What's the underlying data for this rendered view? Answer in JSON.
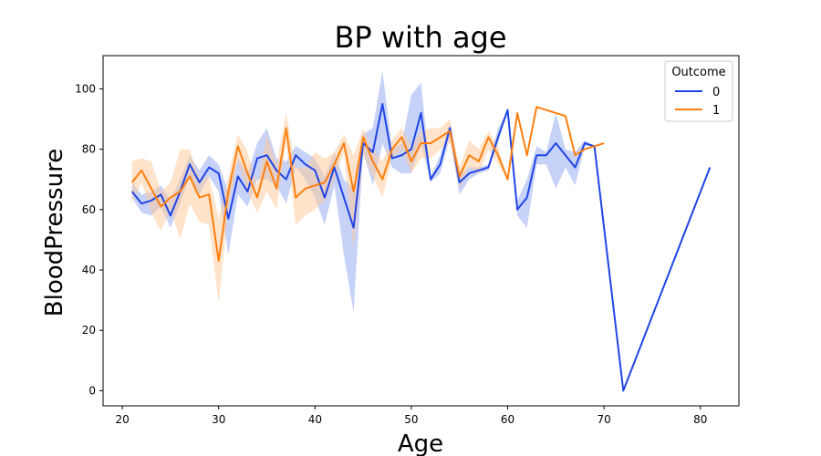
{
  "chart_data": {
    "type": "line",
    "title": "BP with age",
    "xlabel": "Age",
    "ylabel": "BloodPressure",
    "xlim": [
      18,
      84
    ],
    "ylim": [
      -5,
      111
    ],
    "xticks": [
      20,
      30,
      40,
      50,
      60,
      70,
      80
    ],
    "yticks": [
      0,
      20,
      40,
      60,
      80,
      100
    ],
    "grid": false,
    "legend": {
      "title": "Outcome",
      "placement": "top-right"
    },
    "series": [
      {
        "name": "0",
        "color": "#1f45e6",
        "band_color": "#8fa6f2",
        "points": [
          {
            "x": 21,
            "y": 66,
            "lo": 64,
            "hi": 69
          },
          {
            "x": 22,
            "y": 62,
            "lo": 59,
            "hi": 65
          },
          {
            "x": 23,
            "y": 63,
            "lo": 58,
            "hi": 66
          },
          {
            "x": 24,
            "y": 65,
            "lo": 61,
            "hi": 68
          },
          {
            "x": 25,
            "y": 58,
            "lo": 54,
            "hi": 63
          },
          {
            "x": 26,
            "y": 66,
            "lo": 62,
            "hi": 70
          },
          {
            "x": 27,
            "y": 75,
            "lo": 71,
            "hi": 78
          },
          {
            "x": 28,
            "y": 69,
            "lo": 65,
            "hi": 73
          },
          {
            "x": 29,
            "y": 74,
            "lo": 71,
            "hi": 78
          },
          {
            "x": 30,
            "y": 72,
            "lo": 66,
            "hi": 75
          },
          {
            "x": 31,
            "y": 57,
            "lo": 45,
            "hi": 66
          },
          {
            "x": 32,
            "y": 71,
            "lo": 65,
            "hi": 77
          },
          {
            "x": 33,
            "y": 66,
            "lo": 61,
            "hi": 72
          },
          {
            "x": 34,
            "y": 77,
            "lo": 70,
            "hi": 82
          },
          {
            "x": 35,
            "y": 78,
            "lo": 70,
            "hi": 87
          },
          {
            "x": 36,
            "y": 73,
            "lo": 68,
            "hi": 77
          },
          {
            "x": 37,
            "y": 70,
            "lo": 62,
            "hi": 76
          },
          {
            "x": 38,
            "y": 78,
            "lo": 74,
            "hi": 81
          },
          {
            "x": 39,
            "y": 75,
            "lo": 70,
            "hi": 79
          },
          {
            "x": 40,
            "y": 73,
            "lo": 64,
            "hi": 77
          },
          {
            "x": 41,
            "y": 64,
            "lo": 55,
            "hi": 71
          },
          {
            "x": 42,
            "y": 74,
            "lo": 68,
            "hi": 79
          },
          {
            "x": 43,
            "y": 64,
            "lo": 45,
            "hi": 70
          },
          {
            "x": 44,
            "y": 54,
            "lo": 26,
            "hi": 67
          },
          {
            "x": 45,
            "y": 82,
            "lo": 79,
            "hi": 85
          },
          {
            "x": 46,
            "y": 79,
            "lo": 68,
            "hi": 87
          },
          {
            "x": 47,
            "y": 95,
            "lo": 82,
            "hi": 106
          },
          {
            "x": 48,
            "y": 77,
            "lo": 74,
            "hi": 80
          },
          {
            "x": 49,
            "y": 78,
            "lo": 72,
            "hi": 82
          },
          {
            "x": 50,
            "y": 80,
            "lo": 72,
            "hi": 98
          },
          {
            "x": 51,
            "y": 92,
            "lo": 82,
            "hi": 102
          },
          {
            "x": 52,
            "y": 70,
            "lo": 69,
            "hi": 71
          },
          {
            "x": 53,
            "y": 75,
            "lo": 72,
            "hi": 78
          },
          {
            "x": 54,
            "y": 87,
            "lo": 84,
            "hi": 89
          },
          {
            "x": 55,
            "y": 69,
            "lo": 65,
            "hi": 71
          },
          {
            "x": 56,
            "y": 72,
            "lo": 70,
            "hi": 74
          },
          {
            "x": 57,
            "y": 73,
            "lo": 72,
            "hi": 74
          },
          {
            "x": 58,
            "y": 74,
            "lo": 73,
            "hi": 75
          },
          {
            "x": 59,
            "y": 84,
            "lo": 82,
            "hi": 87
          },
          {
            "x": 60,
            "y": 93,
            "lo": 93,
            "hi": 93
          },
          {
            "x": 61,
            "y": 60,
            "lo": 58,
            "hi": 63
          },
          {
            "x": 62,
            "y": 64,
            "lo": 54,
            "hi": 70
          },
          {
            "x": 63,
            "y": 78,
            "lo": 75,
            "hi": 81
          },
          {
            "x": 64,
            "y": 78,
            "lo": 75,
            "hi": 79
          },
          {
            "x": 65,
            "y": 82,
            "lo": 67,
            "hi": 92
          },
          {
            "x": 66,
            "y": 78,
            "lo": 74,
            "hi": 80
          },
          {
            "x": 67,
            "y": 74,
            "lo": 68,
            "hi": 79
          },
          {
            "x": 68,
            "y": 82,
            "lo": 81,
            "hi": 83
          },
          {
            "x": 69,
            "y": 81,
            "lo": 81,
            "hi": 81
          },
          {
            "x": 72,
            "y": 0,
            "lo": 0,
            "hi": 0
          },
          {
            "x": 81,
            "y": 74,
            "lo": 74,
            "hi": 74
          }
        ]
      },
      {
        "name": "1",
        "color": "#ff7f0e",
        "band_color": "#ffc796",
        "points": [
          {
            "x": 21,
            "y": 69,
            "lo": 62,
            "hi": 76
          },
          {
            "x": 22,
            "y": 73,
            "lo": 69,
            "hi": 77
          },
          {
            "x": 23,
            "y": 67,
            "lo": 59,
            "hi": 76
          },
          {
            "x": 24,
            "y": 61,
            "lo": 53,
            "hi": 66
          },
          {
            "x": 25,
            "y": 64,
            "lo": 60,
            "hi": 69
          },
          {
            "x": 26,
            "y": 66,
            "lo": 50,
            "hi": 80
          },
          {
            "x": 27,
            "y": 71,
            "lo": 62,
            "hi": 80
          },
          {
            "x": 28,
            "y": 64,
            "lo": 56,
            "hi": 70
          },
          {
            "x": 29,
            "y": 65,
            "lo": 55,
            "hi": 71
          },
          {
            "x": 30,
            "y": 43,
            "lo": 29,
            "hi": 57
          },
          {
            "x": 31,
            "y": 66,
            "lo": 60,
            "hi": 71
          },
          {
            "x": 32,
            "y": 81,
            "lo": 76,
            "hi": 85
          },
          {
            "x": 33,
            "y": 72,
            "lo": 66,
            "hi": 79
          },
          {
            "x": 34,
            "y": 64,
            "lo": 59,
            "hi": 68
          },
          {
            "x": 35,
            "y": 76,
            "lo": 66,
            "hi": 85
          },
          {
            "x": 36,
            "y": 67,
            "lo": 60,
            "hi": 75
          },
          {
            "x": 37,
            "y": 87,
            "lo": 82,
            "hi": 92
          },
          {
            "x": 38,
            "y": 64,
            "lo": 55,
            "hi": 74
          },
          {
            "x": 39,
            "y": 67,
            "lo": 58,
            "hi": 74
          },
          {
            "x": 40,
            "y": 68,
            "lo": 60,
            "hi": 79
          },
          {
            "x": 41,
            "y": 69,
            "lo": 63,
            "hi": 77
          },
          {
            "x": 42,
            "y": 75,
            "lo": 70,
            "hi": 79
          },
          {
            "x": 43,
            "y": 82,
            "lo": 79,
            "hi": 85
          },
          {
            "x": 44,
            "y": 66,
            "lo": 47,
            "hi": 78
          },
          {
            "x": 45,
            "y": 84,
            "lo": 78,
            "hi": 87
          },
          {
            "x": 46,
            "y": 76,
            "lo": 71,
            "hi": 80
          },
          {
            "x": 47,
            "y": 70,
            "lo": 64,
            "hi": 76
          },
          {
            "x": 48,
            "y": 80,
            "lo": 77,
            "hi": 83
          },
          {
            "x": 49,
            "y": 84,
            "lo": 80,
            "hi": 87
          },
          {
            "x": 50,
            "y": 76,
            "lo": 72,
            "hi": 81
          },
          {
            "x": 51,
            "y": 82,
            "lo": 77,
            "hi": 86
          },
          {
            "x": 52,
            "y": 82,
            "lo": 77,
            "hi": 87
          },
          {
            "x": 53,
            "y": 84,
            "lo": 80,
            "hi": 87
          },
          {
            "x": 54,
            "y": 86,
            "lo": 82,
            "hi": 90
          },
          {
            "x": 55,
            "y": 71,
            "lo": 67,
            "hi": 74
          },
          {
            "x": 56,
            "y": 78,
            "lo": 74,
            "hi": 83
          },
          {
            "x": 57,
            "y": 76,
            "lo": 72,
            "hi": 80
          },
          {
            "x": 58,
            "y": 84,
            "lo": 80,
            "hi": 86
          },
          {
            "x": 59,
            "y": 78,
            "lo": 75,
            "hi": 81
          },
          {
            "x": 60,
            "y": 70,
            "lo": 70,
            "hi": 70
          },
          {
            "x": 61,
            "y": 92,
            "lo": 92,
            "hi": 92
          },
          {
            "x": 62,
            "y": 78,
            "lo": 78,
            "hi": 78
          },
          {
            "x": 63,
            "y": 94,
            "lo": 94,
            "hi": 94
          },
          {
            "x": 64,
            "y": 93,
            "lo": 93,
            "hi": 93
          },
          {
            "x": 65,
            "y": 92,
            "lo": 92,
            "hi": 92
          },
          {
            "x": 66,
            "y": 91,
            "lo": 91,
            "hi": 91
          },
          {
            "x": 67,
            "y": 78,
            "lo": 78,
            "hi": 78
          },
          {
            "x": 68,
            "y": 80,
            "lo": 80,
            "hi": 80
          },
          {
            "x": 69,
            "y": 81,
            "lo": 81,
            "hi": 81
          },
          {
            "x": 70,
            "y": 82,
            "lo": 82,
            "hi": 82
          }
        ]
      }
    ]
  }
}
